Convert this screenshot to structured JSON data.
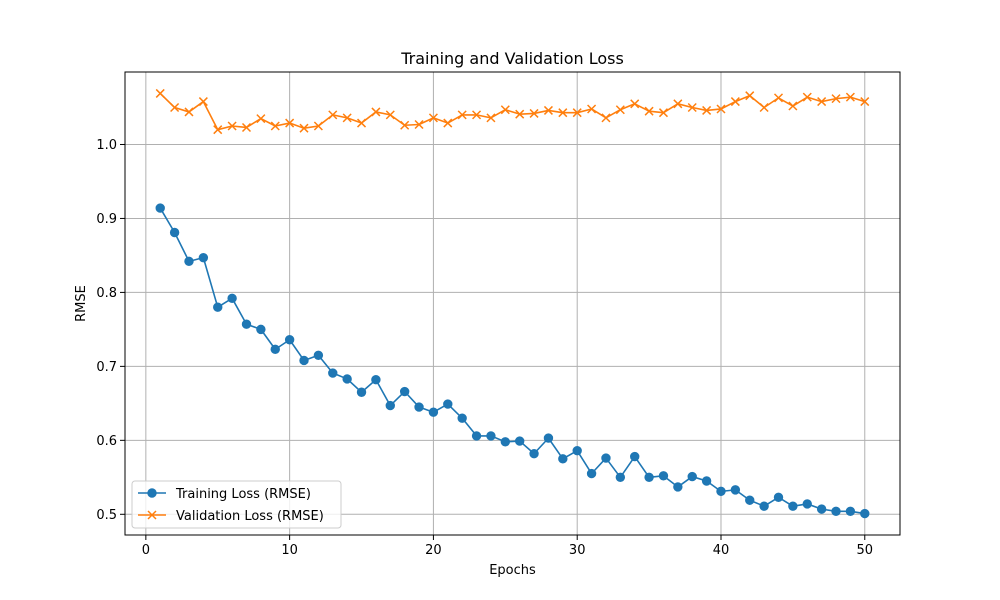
{
  "chart_data": {
    "type": "line",
    "title": "Training and Validation Loss",
    "xlabel": "Epochs",
    "ylabel": "RMSE",
    "xlim": [
      -1.45,
      52.45
    ],
    "ylim": [
      0.472,
      1.098
    ],
    "xticks": [
      0,
      10,
      20,
      30,
      40,
      50
    ],
    "yticks": [
      0.5,
      0.6,
      0.7,
      0.8,
      0.9,
      1.0
    ],
    "xtick_labels": [
      "0",
      "10",
      "20",
      "30",
      "40",
      "50"
    ],
    "ytick_labels": [
      "0.5",
      "0.6",
      "0.7",
      "0.8",
      "0.9",
      "1.0"
    ],
    "grid": true,
    "legend_position": "lower-left",
    "x": [
      1,
      2,
      3,
      4,
      5,
      6,
      7,
      8,
      9,
      10,
      11,
      12,
      13,
      14,
      15,
      16,
      17,
      18,
      19,
      20,
      21,
      22,
      23,
      24,
      25,
      26,
      27,
      28,
      29,
      30,
      31,
      32,
      33,
      34,
      35,
      36,
      37,
      38,
      39,
      40,
      41,
      42,
      43,
      44,
      45,
      46,
      47,
      48,
      49,
      50
    ],
    "series": [
      {
        "name": "Training Loss (RMSE)",
        "color": "#1f77b4",
        "marker": "circle",
        "values": [
          0.914,
          0.881,
          0.842,
          0.847,
          0.78,
          0.792,
          0.757,
          0.75,
          0.723,
          0.736,
          0.708,
          0.715,
          0.691,
          0.683,
          0.665,
          0.682,
          0.647,
          0.666,
          0.645,
          0.638,
          0.649,
          0.63,
          0.606,
          0.606,
          0.598,
          0.599,
          0.582,
          0.603,
          0.575,
          0.586,
          0.555,
          0.576,
          0.55,
          0.578,
          0.55,
          0.552,
          0.537,
          0.551,
          0.545,
          0.531,
          0.533,
          0.519,
          0.511,
          0.523,
          0.511,
          0.514,
          0.507,
          0.504,
          0.504,
          0.501
        ]
      },
      {
        "name": "Validation Loss (RMSE)",
        "color": "#ff7f0e",
        "marker": "x",
        "values": [
          1.069,
          1.05,
          1.044,
          1.058,
          1.02,
          1.025,
          1.023,
          1.035,
          1.025,
          1.029,
          1.022,
          1.025,
          1.04,
          1.036,
          1.029,
          1.044,
          1.04,
          1.026,
          1.027,
          1.036,
          1.029,
          1.04,
          1.04,
          1.036,
          1.047,
          1.041,
          1.042,
          1.046,
          1.043,
          1.043,
          1.048,
          1.036,
          1.047,
          1.055,
          1.045,
          1.043,
          1.055,
          1.05,
          1.046,
          1.048,
          1.058,
          1.066,
          1.05,
          1.063,
          1.052,
          1.064,
          1.058,
          1.062,
          1.064,
          1.058
        ]
      }
    ]
  }
}
